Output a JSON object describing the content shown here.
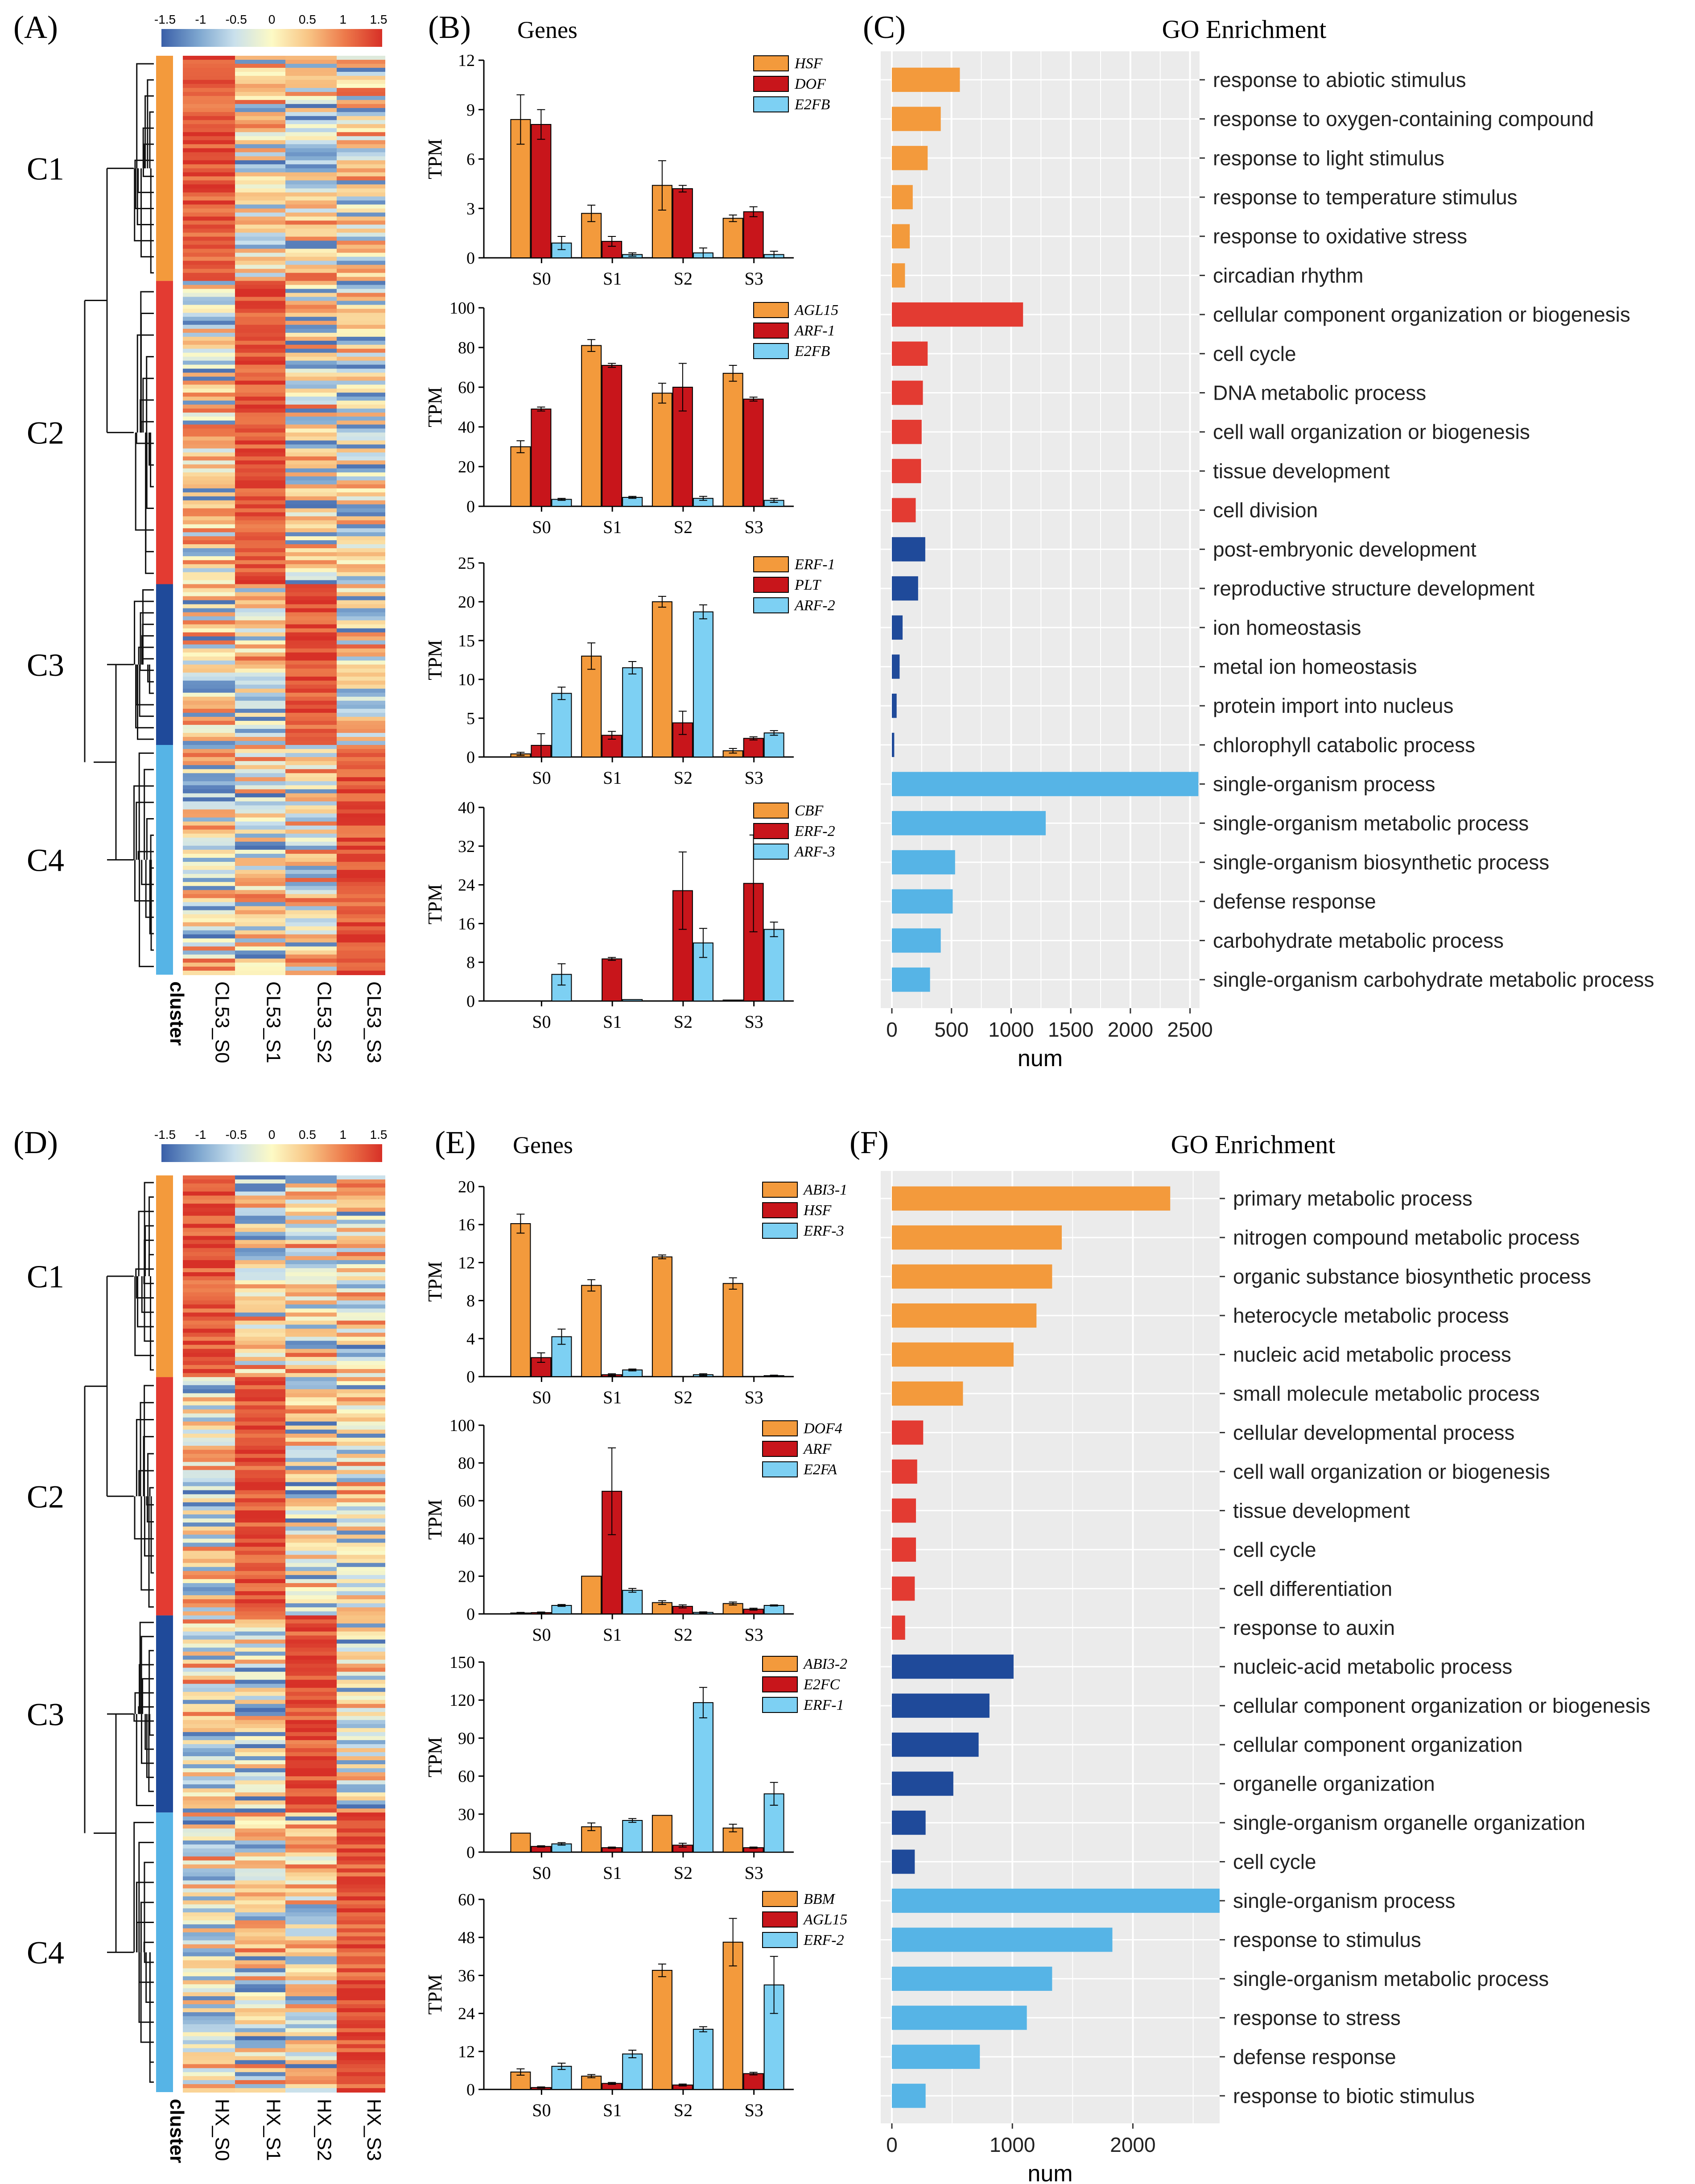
{
  "colors": {
    "orange": "#f39a3c",
    "red": "#e33b32",
    "navy": "#1f4a9a",
    "sky": "#56b4e6",
    "dark_red": "#c8151b",
    "light_blue": "#7dd0f3",
    "go_bg": "#ebebeb"
  },
  "colorbar": {
    "ticks": [
      "-1.5",
      "-1",
      "-0.5",
      "0",
      "0.5",
      "1",
      "1.5"
    ],
    "stops": [
      "#3a5fa8",
      "#7ea7d0",
      "#c9e0ec",
      "#fdfac5",
      "#f8c383",
      "#ed7a4b",
      "#d73027"
    ]
  },
  "clusters": [
    "C1",
    "C2",
    "C3",
    "C4"
  ],
  "heatmaps": [
    {
      "panel": "(A)",
      "cluster_label": "cluster",
      "columns": [
        "CL53_S0",
        "CL53_S1",
        "CL53_S2",
        "CL53_S3"
      ],
      "cluster_colors": [
        "#f39a3c",
        "#e33b32",
        "#1f4a9a",
        "#56b4e6"
      ],
      "cluster_fractions": [
        0.245,
        0.33,
        0.175,
        0.25
      ]
    },
    {
      "panel": "(D)",
      "cluster_label": "cluster",
      "columns": [
        "HX_S0",
        "HX_S1",
        "HX_S2",
        "HX_S3"
      ],
      "cluster_colors": [
        "#f39a3c",
        "#e33b32",
        "#1f4a9a",
        "#56b4e6"
      ],
      "cluster_fractions": [
        0.22,
        0.26,
        0.215,
        0.305
      ]
    }
  ],
  "chart_data": [
    {
      "panel": "(B)",
      "title": "Genes",
      "type": "bar",
      "subplots": [
        {
          "ylabel": "TPM",
          "categories": [
            "S0",
            "S1",
            "S2",
            "S3"
          ],
          "ylim": [
            0,
            12
          ],
          "yticks": [
            "0",
            "3",
            "6",
            "9",
            "12"
          ],
          "series": [
            {
              "name": "HSF",
              "values": [
                8.4,
                2.7,
                4.4,
                2.4
              ],
              "err": [
                1.5,
                0.5,
                1.5,
                0.2
              ]
            },
            {
              "name": "DOF",
              "values": [
                8.1,
                1.0,
                4.2,
                2.8
              ],
              "err": [
                0.9,
                0.3,
                0.2,
                0.3
              ]
            },
            {
              "name": "E2FB",
              "values": [
                0.9,
                0.2,
                0.3,
                0.2
              ],
              "err": [
                0.4,
                0.1,
                0.3,
                0.2
              ]
            }
          ]
        },
        {
          "ylabel": "TPM",
          "categories": [
            "S0",
            "S1",
            "S2",
            "S3"
          ],
          "ylim": [
            0,
            100
          ],
          "yticks": [
            "0",
            "20",
            "40",
            "60",
            "80",
            "100"
          ],
          "series": [
            {
              "name": "AGL15",
              "values": [
                30,
                81,
                57,
                67
              ],
              "err": [
                3,
                3,
                5,
                4
              ]
            },
            {
              "name": "ARF-1",
              "values": [
                49,
                71,
                60,
                54
              ],
              "err": [
                1,
                1,
                12,
                1
              ]
            },
            {
              "name": "E2FB",
              "values": [
                3.5,
                4.5,
                4,
                3
              ],
              "err": [
                0.5,
                0.5,
                1,
                1
              ]
            }
          ]
        },
        {
          "ylabel": "TPM",
          "categories": [
            "S0",
            "S1",
            "S2",
            "S3"
          ],
          "ylim": [
            0,
            25
          ],
          "yticks": [
            "0",
            "5",
            "10",
            "15",
            "20",
            "25"
          ],
          "series": [
            {
              "name": "ERF-1",
              "values": [
                0.4,
                13,
                20,
                0.8
              ],
              "err": [
                0.2,
                1.7,
                0.7,
                0.3
              ]
            },
            {
              "name": "PLT",
              "values": [
                1.5,
                2.8,
                4.4,
                2.4
              ],
              "err": [
                1.5,
                0.5,
                1.5,
                0.2
              ]
            },
            {
              "name": "ARF-2",
              "values": [
                8.2,
                11.5,
                18.7,
                3.1
              ],
              "err": [
                0.8,
                0.8,
                0.9,
                0.3
              ]
            }
          ]
        },
        {
          "ylabel": "TPM",
          "categories": [
            "S0",
            "S1",
            "S2",
            "S3"
          ],
          "ylim": [
            0,
            40
          ],
          "yticks": [
            "0",
            "8",
            "16",
            "24",
            "32",
            "40"
          ],
          "series": [
            {
              "name": "CBF",
              "values": [
                0,
                0,
                0,
                0.2
              ],
              "err": [
                0,
                0,
                0,
                0
              ]
            },
            {
              "name": "ERF-2",
              "values": [
                0,
                8.7,
                22.8,
                24.3
              ],
              "err": [
                0,
                0.3,
                8,
                10
              ]
            },
            {
              "name": "ARF-3",
              "values": [
                5.5,
                0.3,
                12,
                14.8
              ],
              "err": [
                2.2,
                0,
                3,
                1.5
              ]
            }
          ]
        }
      ]
    },
    {
      "panel": "(C)",
      "title": "GO Enrichment",
      "type": "bar",
      "xlabel": "num",
      "xlim": [
        0,
        2580
      ],
      "xticks": [
        0,
        500,
        1000,
        1500,
        2000,
        2500
      ],
      "categories": [
        "response to abiotic stimulus",
        "response to oxygen-containing compound",
        "response to light stimulus",
        "response to temperature stimulus",
        "response to oxidative stress",
        "circadian rhythm",
        "cellular component organization or biogenesis",
        "cell cycle",
        "DNA metabolic process",
        "cell wall organization or biogenesis",
        "tissue development",
        "cell division",
        "post-embryonic development",
        "reproductive structure development",
        "ion homeostasis",
        "metal ion homeostasis",
        "protein import into nucleus",
        "chlorophyll catabolic process",
        "single-organism process",
        "single-organism metabolic process",
        "single-organism biosynthetic process",
        "defense response",
        "carbohydrate metabolic process",
        "single-organism carbohydrate metabolic process"
      ],
      "values": [
        570,
        410,
        300,
        175,
        150,
        110,
        1100,
        300,
        260,
        250,
        245,
        200,
        280,
        220,
        90,
        65,
        40,
        20,
        2570,
        1290,
        530,
        510,
        410,
        320
      ],
      "clusters": [
        1,
        1,
        1,
        1,
        1,
        1,
        2,
        2,
        2,
        2,
        2,
        2,
        3,
        3,
        3,
        3,
        3,
        3,
        4,
        4,
        4,
        4,
        4,
        4
      ]
    },
    {
      "panel": "(E)",
      "title": "Genes",
      "type": "bar",
      "subplots": [
        {
          "ylabel": "TPM",
          "categories": [
            "S0",
            "S1",
            "S2",
            "S3"
          ],
          "ylim": [
            0,
            20
          ],
          "yticks": [
            "0",
            "4",
            "8",
            "12",
            "16",
            "20"
          ],
          "series": [
            {
              "name": "ABI3-1",
              "values": [
                16.1,
                9.6,
                12.6,
                9.8
              ],
              "err": [
                1.0,
                0.6,
                0.2,
                0.6
              ]
            },
            {
              "name": "HSF",
              "values": [
                2.0,
                0.2,
                0,
                0
              ],
              "err": [
                0.5,
                0.1,
                0,
                0
              ]
            },
            {
              "name": "ERF-3",
              "values": [
                4.2,
                0.7,
                0.2,
                0.1
              ],
              "err": [
                0.8,
                0.1,
                0.1,
                0.05
              ]
            }
          ]
        },
        {
          "ylabel": "TPM",
          "categories": [
            "S0",
            "S1",
            "S2",
            "S3"
          ],
          "ylim": [
            0,
            100
          ],
          "yticks": [
            "0",
            "20",
            "40",
            "60",
            "80",
            "100"
          ],
          "series": [
            {
              "name": "DOF4",
              "values": [
                0.5,
                20,
                6,
                5.5
              ],
              "err": [
                0.3,
                0,
                1,
                0.8
              ]
            },
            {
              "name": "ARF",
              "values": [
                0.7,
                65,
                4,
                2.5
              ],
              "err": [
                0.3,
                23,
                0.8,
                0.5
              ]
            },
            {
              "name": "E2FA",
              "values": [
                4.5,
                12.5,
                0.8,
                4.5
              ],
              "err": [
                0.5,
                1,
                0.3,
                0.3
              ]
            }
          ]
        },
        {
          "ylabel": "TPM",
          "categories": [
            "S0",
            "S1",
            "S2",
            "S3"
          ],
          "ylim": [
            0,
            150
          ],
          "yticks": [
            "0",
            "30",
            "60",
            "90",
            "120",
            "150"
          ],
          "series": [
            {
              "name": "ABI3-2",
              "values": [
                15,
                20,
                29,
                19
              ],
              "err": [
                0,
                3,
                0,
                3
              ]
            },
            {
              "name": "E2FC",
              "values": [
                4.5,
                3.5,
                5.5,
                3.5
              ],
              "err": [
                0.5,
                0.5,
                1.5,
                0.5
              ]
            },
            {
              "name": "ERF-1",
              "values": [
                6.5,
                25,
                118,
                46
              ],
              "err": [
                1,
                1.5,
                12,
                9
              ]
            }
          ]
        },
        {
          "ylabel": "TPM",
          "categories": [
            "S0",
            "S1",
            "S2",
            "S3"
          ],
          "ylim": [
            0,
            60
          ],
          "yticks": [
            "0",
            "12",
            "24",
            "36",
            "48",
            "60"
          ],
          "series": [
            {
              "name": "BBM",
              "values": [
                5.5,
                4.2,
                37.6,
                46.5
              ],
              "err": [
                1,
                0.5,
                2,
                7.5
              ]
            },
            {
              "name": "AGL15",
              "values": [
                0.6,
                1.9,
                1.4,
                5.0
              ],
              "err": [
                0.2,
                0.3,
                0.3,
                0.4
              ]
            },
            {
              "name": "ERF-2",
              "values": [
                7.3,
                11.2,
                19.0,
                33.0
              ],
              "err": [
                1,
                1.2,
                0.8,
                9
              ]
            }
          ]
        }
      ]
    },
    {
      "panel": "(F)",
      "title": "GO Enrichment",
      "type": "bar",
      "xlabel": "num",
      "xlim": [
        0,
        2720
      ],
      "xticks": [
        0,
        1000,
        2000
      ],
      "categories": [
        "primary metabolic process",
        "nitrogen compound metabolic process",
        "organic substance biosynthetic process",
        "heterocycle metabolic process",
        "nucleic acid metabolic process",
        "small molecule metabolic process",
        "cellular developmental process",
        "cell wall organization or biogenesis",
        "tissue development",
        "cell cycle",
        "cell differentiation",
        "response to auxin",
        "nucleic-acid metabolic process",
        "cellular component organization or biogenesis",
        "cellular component organization",
        "organelle organization",
        "single-organism organelle organization",
        "cell cycle",
        "single-organism process",
        "response to stimulus",
        "single-organism metabolic process",
        "response to stress",
        "defense response",
        "response to biotic stimulus"
      ],
      "values": [
        2310,
        1410,
        1330,
        1200,
        1010,
        590,
        260,
        210,
        200,
        200,
        190,
        110,
        1010,
        810,
        720,
        510,
        280,
        190,
        2720,
        1830,
        1330,
        1120,
        730,
        280
      ],
      "clusters": [
        1,
        1,
        1,
        1,
        1,
        1,
        2,
        2,
        2,
        2,
        2,
        2,
        3,
        3,
        3,
        3,
        3,
        3,
        4,
        4,
        4,
        4,
        4,
        4
      ]
    }
  ]
}
